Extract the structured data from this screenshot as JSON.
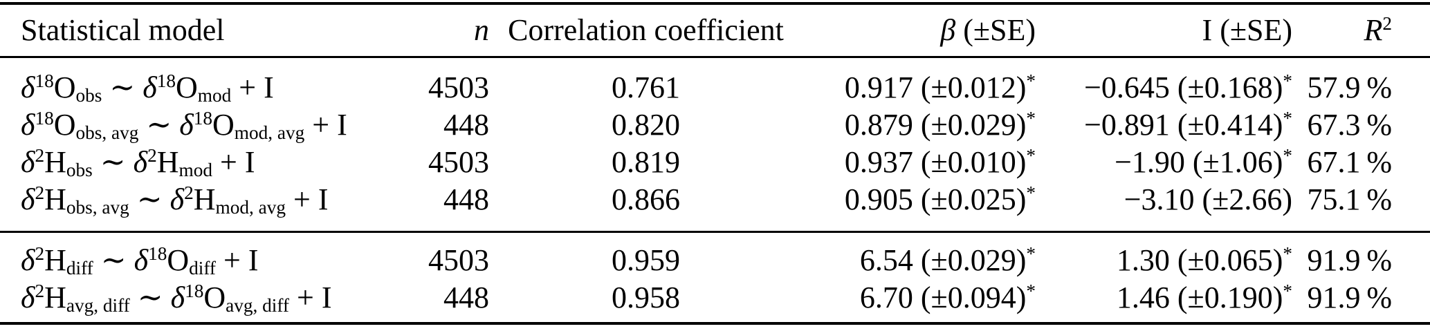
{
  "page": {
    "background": "#ffffff",
    "text_color": "#000000",
    "rule_color": "#000000"
  },
  "table": {
    "columns": [
      {
        "id": "model",
        "label": "Statistical model",
        "align": "left"
      },
      {
        "id": "n",
        "label": "«n»",
        "align": "right"
      },
      {
        "id": "correlation",
        "label": "Correlation coefficient",
        "align": "center"
      },
      {
        "id": "beta",
        "label": "«β» (±SE)",
        "align": "right"
      },
      {
        "id": "intercept",
        "label": "I (±SE)",
        "align": "right"
      },
      {
        "id": "r_squared",
        "label": "«R»^2^",
        "align": "right"
      }
    ],
    "groups": [
      {
        "name": "direct-models",
        "rows": [
          {
            "model": "«δ»^18^O_obs_ ∼ «δ»^18^O_mod_ + I",
            "n": "4503",
            "correlation": "0.761",
            "beta": "0.917 (±0.012)^*^",
            "intercept": "−0.645 (±0.168)^*^",
            "r_squared": "57.9 %"
          },
          {
            "model": "«δ»^18^O_obs, avg_ ∼ «δ»^18^O_mod, avg_ + I",
            "n": "448",
            "correlation": "0.820",
            "beta": "0.879 (±0.029)^*^",
            "intercept": "−0.891 (±0.414)^*^",
            "r_squared": "67.3 %"
          },
          {
            "model": "«δ»^2^H_obs_ ∼ «δ»^2^H_mod_ + I",
            "n": "4503",
            "correlation": "0.819",
            "beta": "0.937 (±0.010)^*^",
            "intercept": "−1.90 (±1.06)^*^",
            "r_squared": "67.1 %"
          },
          {
            "model": "«δ»^2^H_obs, avg_ ∼ «δ»^2^H_mod, avg_ + I",
            "n": "448",
            "correlation": "0.866",
            "beta": "0.905 (±0.025)^*^",
            "intercept": "−3.10 (±2.66)",
            "r_squared": "75.1 %"
          }
        ]
      },
      {
        "name": "difference-models",
        "rows": [
          {
            "model": "«δ»^2^H_diff_ ∼ «δ»^18^O_diff_ + I",
            "n": "4503",
            "correlation": "0.959",
            "beta": "6.54 (±0.029)^*^",
            "intercept": "1.30 (±0.065)^*^",
            "r_squared": "91.9 %"
          },
          {
            "model": "«δ»^2^H_avg, diff_ ∼ «δ»^18^O_avg, diff_ + I",
            "n": "448",
            "correlation": "0.958",
            "beta": "6.70 (±0.094)^*^",
            "intercept": "1.46 (±0.190)^*^",
            "r_squared": "91.9 %"
          }
        ]
      }
    ]
  }
}
